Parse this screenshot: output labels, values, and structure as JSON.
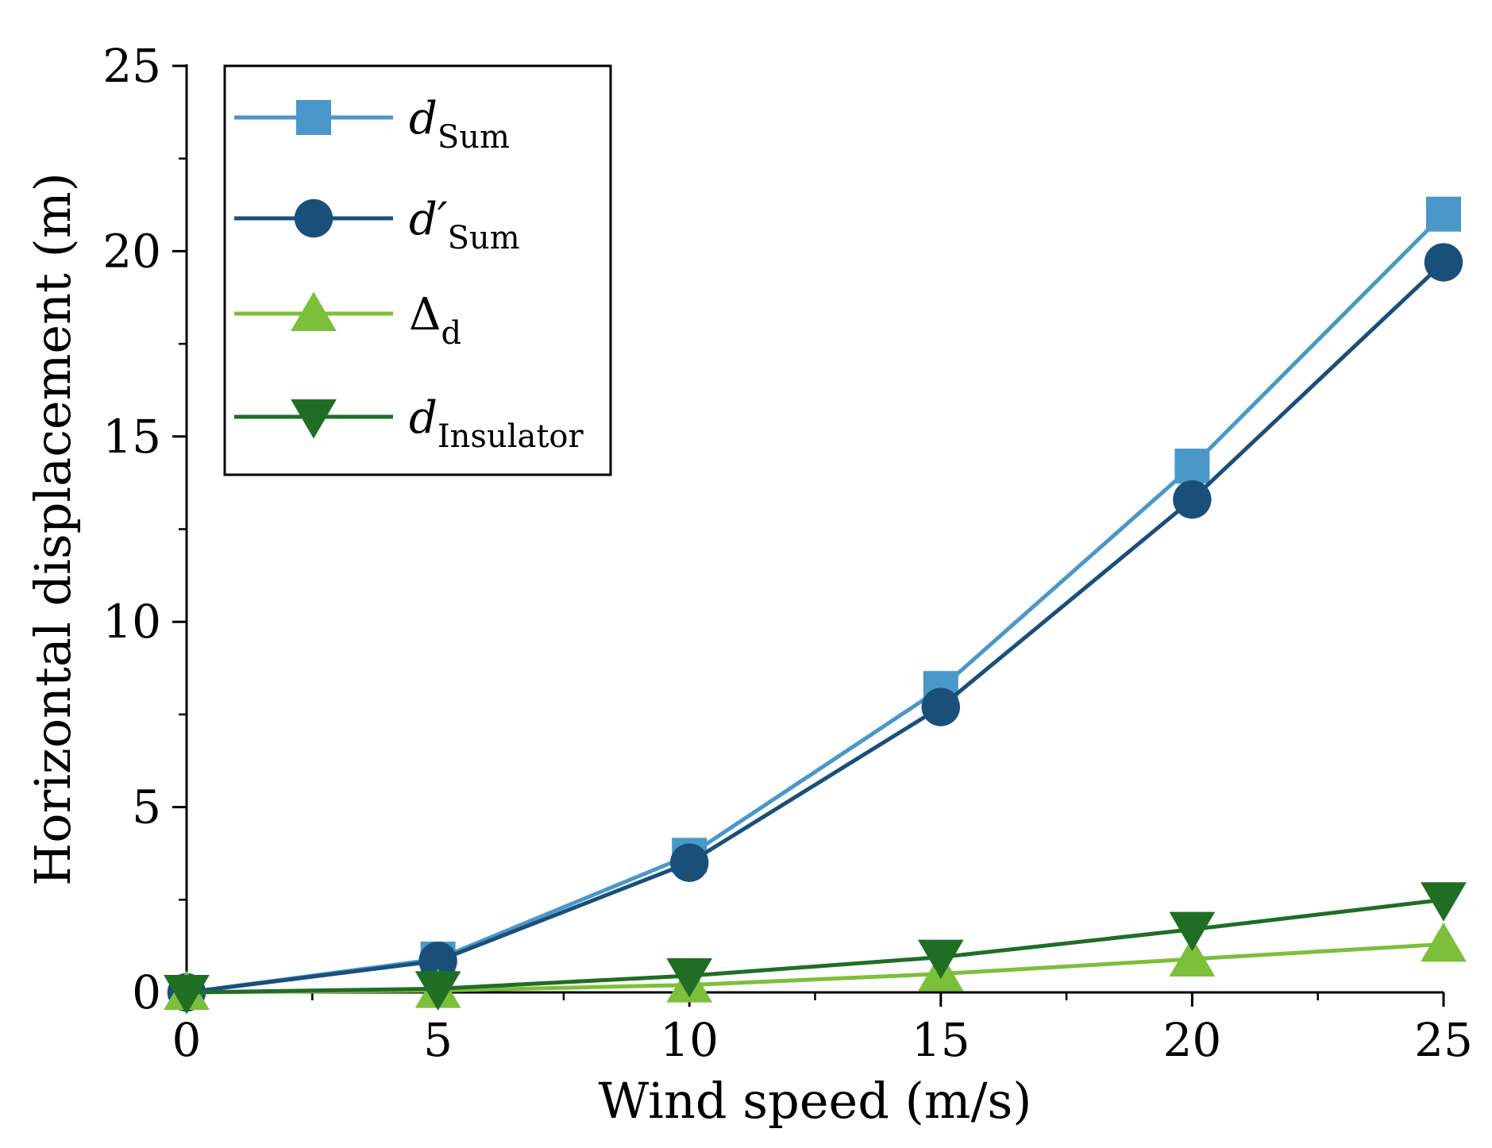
{
  "chart_data": {
    "type": "line",
    "title": "",
    "xlabel": "Wind speed (m/s)",
    "ylabel": "Horizontal displacement (m)",
    "xlim": [
      0,
      25
    ],
    "ylim": [
      0,
      25
    ],
    "x_major_ticks": [
      0,
      5,
      10,
      15,
      20,
      25
    ],
    "y_major_ticks": [
      0,
      5,
      10,
      15,
      20,
      25
    ],
    "x_tick_labels": [
      "0",
      "5",
      "10",
      "15",
      "20",
      "25"
    ],
    "y_tick_labels": [
      "0",
      "5",
      "10",
      "15",
      "20",
      "25"
    ],
    "grid": false,
    "legend_position": "top-left",
    "x": [
      0,
      5,
      10,
      15,
      20,
      25
    ],
    "series": [
      {
        "name": "d_Sum",
        "label_main": "d",
        "label_sub": "Sum",
        "marker": "square",
        "color": "#4a97c9",
        "values": [
          0,
          0.9,
          3.7,
          8.2,
          14.2,
          21.0
        ]
      },
      {
        "name": "d'_Sum",
        "label_main": "d′",
        "label_sub": "Sum",
        "marker": "circle",
        "color": "#1a4f7a",
        "values": [
          0,
          0.85,
          3.5,
          7.7,
          13.3,
          19.7
        ]
      },
      {
        "name": "Δ_d",
        "label_main": "Δ",
        "label_sub": "d",
        "marker": "triangle-up",
        "color": "#7cbf3a",
        "values": [
          0,
          0.05,
          0.2,
          0.5,
          0.9,
          1.3
        ]
      },
      {
        "name": "d_Insulator",
        "label_main": "d",
        "label_sub": "Insulator",
        "marker": "triangle-down",
        "color": "#1f6e24",
        "values": [
          0,
          0.1,
          0.45,
          0.95,
          1.7,
          2.5
        ]
      }
    ]
  }
}
